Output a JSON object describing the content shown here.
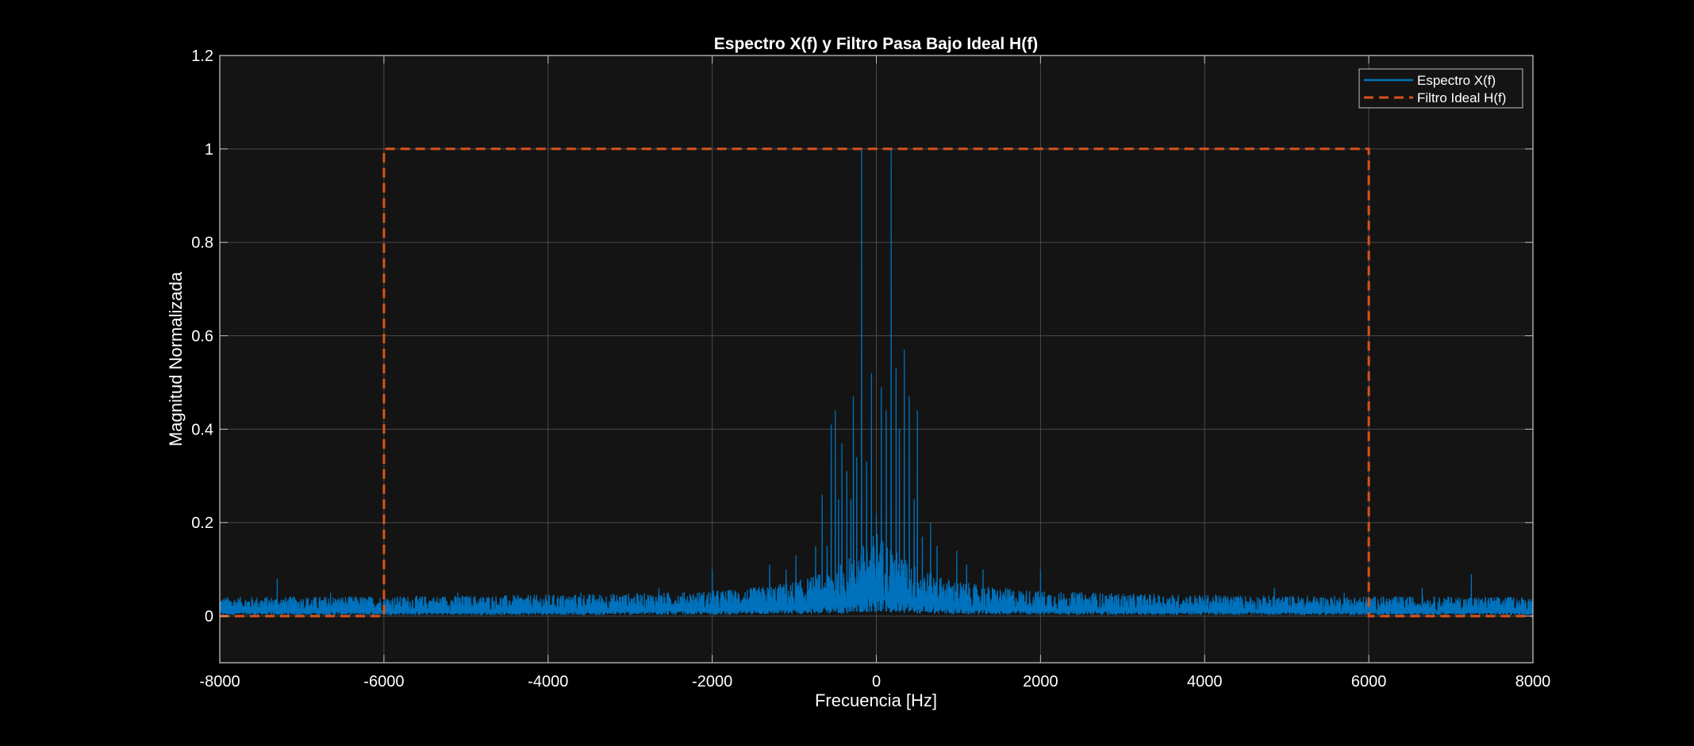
{
  "chart_data": {
    "type": "line",
    "title": "Espectro X(f) y Filtro Pasa Bajo Ideal H(f)",
    "xlabel": "Frecuencia [Hz]",
    "ylabel": "Magnitud Normalizada",
    "xlim": [
      -8000,
      8000
    ],
    "ylim": [
      -0.1,
      1.2
    ],
    "xticks": [
      -8000,
      -6000,
      -4000,
      -2000,
      0,
      2000,
      4000,
      6000,
      8000
    ],
    "xtick_labels": [
      "-8000",
      "-6000",
      "-4000",
      "-2000",
      "0",
      "2000",
      "4000",
      "6000",
      "8000"
    ],
    "yticks": [
      0,
      0.2,
      0.4,
      0.6,
      0.8,
      1,
      1.2
    ],
    "ytick_labels": [
      "0",
      "0.2",
      "0.4",
      "0.6",
      "0.8",
      "1",
      "1.2"
    ],
    "grid": true,
    "legend": {
      "placement": "top-right"
    },
    "series": [
      {
        "name": "Espectro X(f)",
        "color": "#0072BD",
        "style": "solid",
        "peaks": [
          {
            "x": -7300,
            "y": 0.08
          },
          {
            "x": -6650,
            "y": 0.05
          },
          {
            "x": -5100,
            "y": 0.05
          },
          {
            "x": -3600,
            "y": 0.05
          },
          {
            "x": -2650,
            "y": 0.06
          },
          {
            "x": -2000,
            "y": 0.1
          },
          {
            "x": -1300,
            "y": 0.11
          },
          {
            "x": -1100,
            "y": 0.1
          },
          {
            "x": -980,
            "y": 0.13
          },
          {
            "x": -740,
            "y": 0.15
          },
          {
            "x": -660,
            "y": 0.26
          },
          {
            "x": -600,
            "y": 0.15
          },
          {
            "x": -550,
            "y": 0.41
          },
          {
            "x": -500,
            "y": 0.44
          },
          {
            "x": -460,
            "y": 0.25
          },
          {
            "x": -420,
            "y": 0.37
          },
          {
            "x": -360,
            "y": 0.31
          },
          {
            "x": -310,
            "y": 0.25
          },
          {
            "x": -280,
            "y": 0.47
          },
          {
            "x": -240,
            "y": 0.34
          },
          {
            "x": -180,
            "y": 1.0
          },
          {
            "x": -120,
            "y": 0.33
          },
          {
            "x": -60,
            "y": 0.52
          },
          {
            "x": 0,
            "y": 0.22
          },
          {
            "x": 60,
            "y": 0.49
          },
          {
            "x": 120,
            "y": 0.44
          },
          {
            "x": 180,
            "y": 1.0
          },
          {
            "x": 240,
            "y": 0.53
          },
          {
            "x": 280,
            "y": 0.4
          },
          {
            "x": 340,
            "y": 0.57
          },
          {
            "x": 400,
            "y": 0.47
          },
          {
            "x": 460,
            "y": 0.25
          },
          {
            "x": 500,
            "y": 0.44
          },
          {
            "x": 560,
            "y": 0.17
          },
          {
            "x": 660,
            "y": 0.2
          },
          {
            "x": 740,
            "y": 0.15
          },
          {
            "x": 980,
            "y": 0.14
          },
          {
            "x": 1100,
            "y": 0.11
          },
          {
            "x": 1300,
            "y": 0.1
          },
          {
            "x": 2000,
            "y": 0.1
          },
          {
            "x": 2650,
            "y": 0.05
          },
          {
            "x": 4850,
            "y": 0.06
          },
          {
            "x": 5700,
            "y": 0.05
          },
          {
            "x": 6650,
            "y": 0.06
          },
          {
            "x": 7250,
            "y": 0.09
          }
        ],
        "noise_floor": 0.03
      },
      {
        "name": "Filtro Ideal H(f)",
        "color": "#D95319",
        "style": "dashed",
        "x": [
          -8000,
          -6000,
          -6000,
          6000,
          6000,
          8000
        ],
        "y": [
          0,
          0,
          1,
          1,
          0,
          0
        ]
      }
    ]
  }
}
